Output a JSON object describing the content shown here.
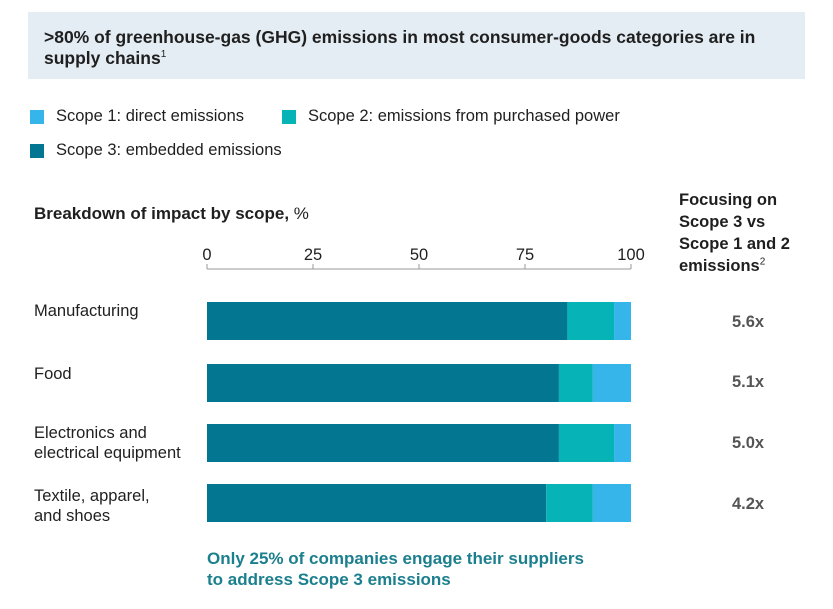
{
  "banner": {
    "title": ">80% of greenhouse-gas (GHG) emissions in most consumer-goods categories are in supply chains",
    "footnote_mark": "1"
  },
  "legend": [
    {
      "label": "Scope 1: direct emissions",
      "color": "#35b5e9"
    },
    {
      "label": "Scope 2: emissions from purchased power",
      "color": "#06b3b6"
    },
    {
      "label": "Scope 3: embedded emissions",
      "color": "#037691"
    }
  ],
  "chart_data": {
    "type": "bar",
    "orientation": "horizontal",
    "stacked": true,
    "title": "Breakdown of impact by scope,",
    "unit": "%",
    "xlim": [
      0,
      100
    ],
    "ticks": [
      0,
      25,
      50,
      75,
      100
    ],
    "categories": [
      "Manufacturing",
      "Food",
      "Electronics and electrical equipment",
      "Textile, apparel, and shoes"
    ],
    "category_lines": [
      [
        "Manufacturing"
      ],
      [
        "Food"
      ],
      [
        "Electronics and",
        "electrical equipment"
      ],
      [
        "Textile, apparel,",
        "and shoes"
      ]
    ],
    "series": [
      {
        "name": "Scope 3: embedded emissions",
        "color": "#037691",
        "values": [
          85,
          83,
          83,
          80
        ]
      },
      {
        "name": "Scope 2: emissions from purchased power",
        "color": "#06b3b6",
        "values": [
          11,
          8,
          13,
          11
        ]
      },
      {
        "name": "Scope 1: direct emissions",
        "color": "#35b5e9",
        "values": [
          4,
          9,
          4,
          9
        ]
      }
    ],
    "right_column": {
      "title_lines": [
        "Focusing on",
        "Scope 3 vs",
        "Scope 1 and 2",
        "emissions"
      ],
      "footnote_mark": "2",
      "values": [
        "5.6x",
        "5.1x",
        "5.0x",
        "4.2x"
      ]
    }
  },
  "footnote": [
    "Only 25% of companies engage their suppliers",
    "to address Scope 3 emissions"
  ]
}
